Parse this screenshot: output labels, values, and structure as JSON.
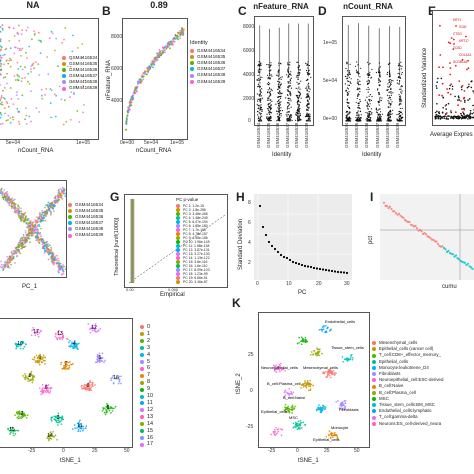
{
  "panels": {
    "A": {
      "letter": "",
      "title": "NA",
      "xlabel": "nCount_RNA",
      "xticks": [
        "0e+00",
        "5e+04",
        "1e+05"
      ]
    },
    "B": {
      "letter": "B",
      "title": "0.89",
      "xlabel": "nCount_RNA",
      "ylabel": "nFeature_RNA",
      "xticks": [
        "0e+00",
        "5e+04",
        "1e+05"
      ],
      "yticks": [
        "2000",
        "4000",
        "6000",
        "8000"
      ],
      "legend_title": "Identity",
      "legend": [
        "GSM4416534",
        "GSM4416535",
        "GSM4416536",
        "GSM4416537",
        "GSM4416538",
        "GSM4416539"
      ]
    },
    "C": {
      "letter": "C",
      "title": "nFeature_RNA",
      "xlabel": "Identity",
      "yticks": [
        "0",
        "2000",
        "4000",
        "6000",
        "8000"
      ],
      "cats": [
        "GSM416534",
        "GSM416535",
        "GSM416536",
        "GSM416537",
        "GSM416538",
        "GSM416539"
      ]
    },
    "D": {
      "letter": "D",
      "title": "nCount_RNA",
      "xlabel": "Identity",
      "yticks": [
        "0e+00",
        "5e+04",
        "1e+05"
      ],
      "cats": [
        "GSM416534",
        "GSM416535",
        "GSM416536",
        "GSM416537",
        "GSM416538",
        "GSM416539"
      ]
    },
    "E": {
      "letter": "E",
      "xlabel": "Average Expres",
      "ylabel": "Standardized Variance",
      "labels": [
        "KRT1",
        "S100",
        "CTSG",
        "KRT17",
        "TCSD",
        "COL1A1",
        "SCGB1A1"
      ]
    },
    "F": {
      "letter": "",
      "xlabel": "PC_1",
      "legend": [
        "GSM4416534",
        "GSM4416535",
        "GSM4416536",
        "GSM4416537",
        "GSM4416538",
        "GSM4416539"
      ]
    },
    "G": {
      "letter": "G",
      "xlabel": "Empirical",
      "ylabel": "Theoretical [runif(1000)]",
      "xticks": [
        "0.00",
        "0.025",
        "0.050",
        "0.075",
        "0.100"
      ],
      "legend_title": "PC  p-value",
      "legend": [
        "PC 1: 1.2e-15",
        "PC 2: 1.8e-286",
        "PC 3: 3.48e-265",
        "PC 4: 1.48e-249",
        "PC 5: 6.07e-194",
        "PC 6: 1.85e-180",
        "PC 7: 1.7e-163",
        "PC 8: 4.78e-157",
        "PC 9: 1.55e-156",
        "PC 10: 1.96e-149",
        "PC 11: 1.58e-138",
        "PC 12: 3.87e-131",
        "PC 13: 3.27e-130",
        "PC 14: 1.13e-122",
        "PC 15: 3.8e-116",
        "PC 16: 1.6e-110",
        "PC 17: 8.09e-103",
        "PC 18: 1.23e-99",
        "PC 19: 6.66e-91",
        "PC 20: 3.46e-87"
      ]
    },
    "H": {
      "letter": "H",
      "xlabel": "PC",
      "ylabel": "Standard Deviation",
      "xticks": [
        "0",
        "10",
        "20",
        "30"
      ],
      "yticks": [
        "2",
        "4",
        "6",
        "8"
      ]
    },
    "I": {
      "letter": "I",
      "xlabel": "cumu",
      "ylabel": "pct"
    },
    "J": {
      "letter": "",
      "xlabel": "tSNE_1",
      "xticks": [
        "-25",
        "0",
        "25",
        "50"
      ],
      "legend": [
        "0",
        "1",
        "2",
        "3",
        "4",
        "5",
        "6",
        "7",
        "8",
        "9",
        "10",
        "11",
        "12",
        "13",
        "14",
        "15",
        "16",
        "17"
      ]
    },
    "K": {
      "letter": "K",
      "xlabel": "tSNE_1",
      "ylabel": "tSNE_2",
      "xticks": [
        "-25",
        "0",
        "25",
        "50"
      ],
      "yticks": [
        "-25",
        "0",
        "25"
      ],
      "legend": [
        "Mesenchymal_cells",
        "Epithelial_cells (cancer cell)",
        "T_cell:CD8+_effector_memory_",
        "Epithelial_cells",
        "Monocyte:leukotriene_D4",
        "Fibroblasts",
        "Neuroepithelial_cell:ESC-derived",
        "B_cell:Naive",
        "B_cell:Plasma_cell",
        "MSC",
        "Tissue_stem_cells:BM_MSC",
        "Endothelial_cells:lymphatic",
        "T_cell:gamma-delta",
        "Neurons:ES_cell-derived_neura"
      ],
      "cluster_labels": [
        "Endothelial_cells",
        "Tissue_stem_cells",
        "Mesenchymal_cells",
        "Neuroepithelial_cells",
        "B_cell:Plasma_cell",
        "B_cell:Naive",
        "Epithelial_cells",
        "MSC",
        "Fibroblasts",
        "Monocyte",
        "Epithelial_cells"
      ]
    }
  },
  "colors": [
    "#f8766d",
    "#c49a00",
    "#53b400",
    "#00c094",
    "#00b6eb",
    "#a58aff",
    "#fb61d7",
    "#e58700",
    "#99a800",
    "#0cb702",
    "#00bfc4",
    "#06a4ff",
    "#df70f8",
    "#ff61c3",
    "#8bab00",
    "#00bc56",
    "#8494ff",
    "#e76bf3"
  ]
}
